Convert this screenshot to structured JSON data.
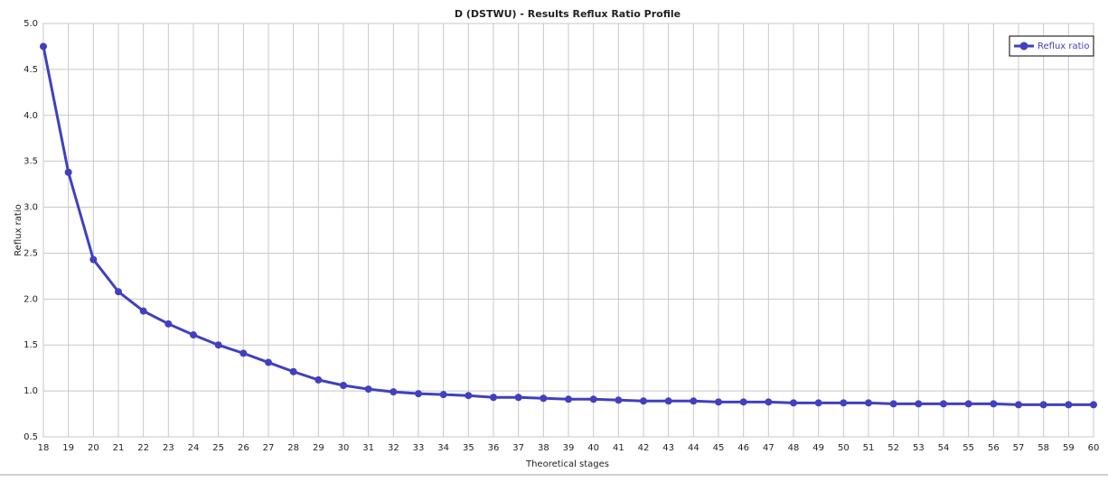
{
  "chart_data": {
    "type": "line",
    "title": "D (DSTWU) - Results Reflux Ratio Profile",
    "x_label": "Theoretical stages",
    "y_label": "Reflux ratio",
    "x": [
      18,
      19,
      20,
      21,
      22,
      23,
      24,
      25,
      26,
      27,
      28,
      29,
      30,
      31,
      32,
      33,
      34,
      35,
      36,
      37,
      38,
      39,
      40,
      41,
      42,
      43,
      44,
      45,
      46,
      47,
      48,
      49,
      50,
      51,
      52,
      53,
      54,
      55,
      56,
      57,
      58,
      59,
      60
    ],
    "series": [
      {
        "name": "Reflux ratio",
        "color": "#4040c0",
        "values": [
          4.75,
          3.38,
          2.43,
          2.08,
          1.87,
          1.73,
          1.61,
          1.5,
          1.41,
          1.31,
          1.21,
          1.12,
          1.06,
          1.02,
          0.99,
          0.97,
          0.96,
          0.95,
          0.93,
          0.93,
          0.92,
          0.91,
          0.91,
          0.9,
          0.89,
          0.89,
          0.89,
          0.88,
          0.88,
          0.88,
          0.87,
          0.87,
          0.87,
          0.87,
          0.86,
          0.86,
          0.86,
          0.86,
          0.86,
          0.85,
          0.85,
          0.85,
          0.85
        ]
      }
    ],
    "xlim": [
      18,
      60
    ],
    "xticks": [
      18,
      19,
      20,
      21,
      22,
      23,
      24,
      25,
      26,
      27,
      28,
      29,
      30,
      31,
      32,
      33,
      34,
      35,
      36,
      37,
      38,
      39,
      40,
      41,
      42,
      43,
      44,
      45,
      46,
      47,
      48,
      49,
      50,
      51,
      52,
      53,
      54,
      55,
      56,
      57,
      58,
      59,
      60
    ],
    "ylim": [
      0.5,
      5.0
    ],
    "yticks": [
      0.5,
      {
        "value": 1,
        "label": "1.0"
      },
      1.5,
      {
        "value": 2,
        "label": "2.0"
      },
      2.5,
      {
        "value": 3,
        "label": "3.0"
      },
      3.5,
      {
        "value": 4,
        "label": "4.0"
      },
      4.5,
      {
        "value": 5,
        "label": "5.0"
      }
    ],
    "grid": true,
    "legend": "upper right"
  }
}
